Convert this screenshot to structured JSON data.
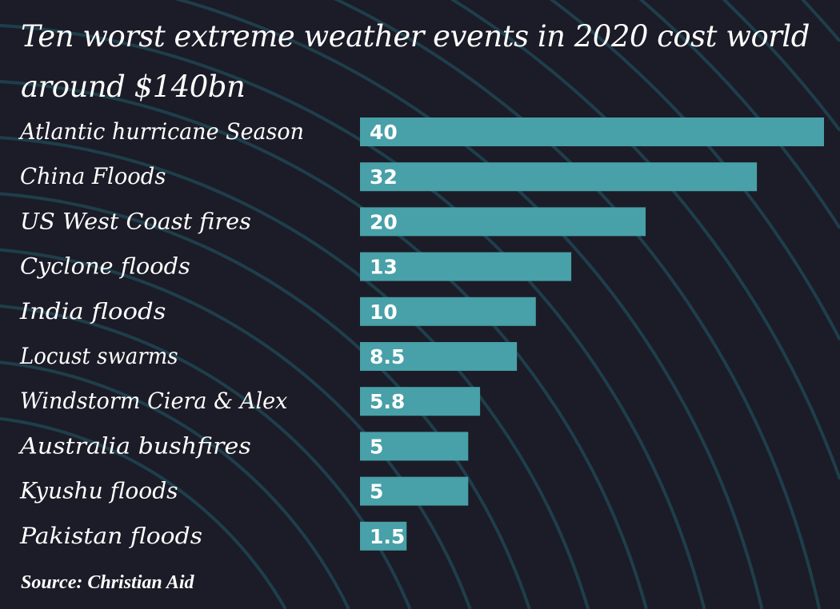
{
  "chart_data": {
    "type": "bar",
    "orientation": "horizontal",
    "title": "Ten worst extreme weather events in 2020 cost world around $140bn",
    "categories": [
      "Atlantic hurricane Season",
      "China Floods",
      "US West Coast fires",
      "Cyclone floods",
      "India floods",
      "Locust swarms",
      "Windstorm Ciera & Alex",
      "Australia bushfires",
      "Kyushu floods",
      "Pakistan floods"
    ],
    "values": [
      40,
      32,
      20,
      13,
      10,
      8.5,
      5.8,
      5,
      5,
      1.5
    ],
    "value_labels": [
      "40",
      "32",
      "20",
      "13",
      "10",
      "8.5",
      "5.8",
      "5",
      "5",
      "1.5"
    ],
    "xlabel": "",
    "ylabel": "",
    "grid": false,
    "source": "Source: Christian Aid",
    "colors": {
      "bar": "#48a0a8",
      "background": "#1b1c27",
      "decor_lines": "#1f3e4b",
      "text": "#ffffff"
    }
  }
}
